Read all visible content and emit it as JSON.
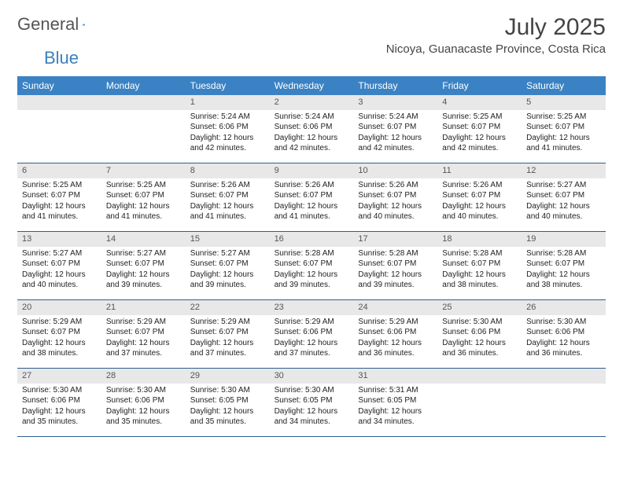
{
  "logo": {
    "part1": "General",
    "part2": "Blue"
  },
  "title": "July 2025",
  "location": "Nicoya, Guanacaste Province, Costa Rica",
  "colors": {
    "header_bg": "#3b82c4",
    "header_text": "#ffffff",
    "daynum_bg": "#e8e8e8",
    "border": "#2f5f8f",
    "logo_gray": "#555555",
    "logo_blue": "#3b7fbf"
  },
  "dow": [
    "Sunday",
    "Monday",
    "Tuesday",
    "Wednesday",
    "Thursday",
    "Friday",
    "Saturday"
  ],
  "weeks": [
    [
      null,
      null,
      {
        "n": "1",
        "sr": "5:24 AM",
        "ss": "6:06 PM",
        "dl": "12 hours and 42 minutes."
      },
      {
        "n": "2",
        "sr": "5:24 AM",
        "ss": "6:06 PM",
        "dl": "12 hours and 42 minutes."
      },
      {
        "n": "3",
        "sr": "5:24 AM",
        "ss": "6:07 PM",
        "dl": "12 hours and 42 minutes."
      },
      {
        "n": "4",
        "sr": "5:25 AM",
        "ss": "6:07 PM",
        "dl": "12 hours and 42 minutes."
      },
      {
        "n": "5",
        "sr": "5:25 AM",
        "ss": "6:07 PM",
        "dl": "12 hours and 41 minutes."
      }
    ],
    [
      {
        "n": "6",
        "sr": "5:25 AM",
        "ss": "6:07 PM",
        "dl": "12 hours and 41 minutes."
      },
      {
        "n": "7",
        "sr": "5:25 AM",
        "ss": "6:07 PM",
        "dl": "12 hours and 41 minutes."
      },
      {
        "n": "8",
        "sr": "5:26 AM",
        "ss": "6:07 PM",
        "dl": "12 hours and 41 minutes."
      },
      {
        "n": "9",
        "sr": "5:26 AM",
        "ss": "6:07 PM",
        "dl": "12 hours and 41 minutes."
      },
      {
        "n": "10",
        "sr": "5:26 AM",
        "ss": "6:07 PM",
        "dl": "12 hours and 40 minutes."
      },
      {
        "n": "11",
        "sr": "5:26 AM",
        "ss": "6:07 PM",
        "dl": "12 hours and 40 minutes."
      },
      {
        "n": "12",
        "sr": "5:27 AM",
        "ss": "6:07 PM",
        "dl": "12 hours and 40 minutes."
      }
    ],
    [
      {
        "n": "13",
        "sr": "5:27 AM",
        "ss": "6:07 PM",
        "dl": "12 hours and 40 minutes."
      },
      {
        "n": "14",
        "sr": "5:27 AM",
        "ss": "6:07 PM",
        "dl": "12 hours and 39 minutes."
      },
      {
        "n": "15",
        "sr": "5:27 AM",
        "ss": "6:07 PM",
        "dl": "12 hours and 39 minutes."
      },
      {
        "n": "16",
        "sr": "5:28 AM",
        "ss": "6:07 PM",
        "dl": "12 hours and 39 minutes."
      },
      {
        "n": "17",
        "sr": "5:28 AM",
        "ss": "6:07 PM",
        "dl": "12 hours and 39 minutes."
      },
      {
        "n": "18",
        "sr": "5:28 AM",
        "ss": "6:07 PM",
        "dl": "12 hours and 38 minutes."
      },
      {
        "n": "19",
        "sr": "5:28 AM",
        "ss": "6:07 PM",
        "dl": "12 hours and 38 minutes."
      }
    ],
    [
      {
        "n": "20",
        "sr": "5:29 AM",
        "ss": "6:07 PM",
        "dl": "12 hours and 38 minutes."
      },
      {
        "n": "21",
        "sr": "5:29 AM",
        "ss": "6:07 PM",
        "dl": "12 hours and 37 minutes."
      },
      {
        "n": "22",
        "sr": "5:29 AM",
        "ss": "6:07 PM",
        "dl": "12 hours and 37 minutes."
      },
      {
        "n": "23",
        "sr": "5:29 AM",
        "ss": "6:06 PM",
        "dl": "12 hours and 37 minutes."
      },
      {
        "n": "24",
        "sr": "5:29 AM",
        "ss": "6:06 PM",
        "dl": "12 hours and 36 minutes."
      },
      {
        "n": "25",
        "sr": "5:30 AM",
        "ss": "6:06 PM",
        "dl": "12 hours and 36 minutes."
      },
      {
        "n": "26",
        "sr": "5:30 AM",
        "ss": "6:06 PM",
        "dl": "12 hours and 36 minutes."
      }
    ],
    [
      {
        "n": "27",
        "sr": "5:30 AM",
        "ss": "6:06 PM",
        "dl": "12 hours and 35 minutes."
      },
      {
        "n": "28",
        "sr": "5:30 AM",
        "ss": "6:06 PM",
        "dl": "12 hours and 35 minutes."
      },
      {
        "n": "29",
        "sr": "5:30 AM",
        "ss": "6:05 PM",
        "dl": "12 hours and 35 minutes."
      },
      {
        "n": "30",
        "sr": "5:30 AM",
        "ss": "6:05 PM",
        "dl": "12 hours and 34 minutes."
      },
      {
        "n": "31",
        "sr": "5:31 AM",
        "ss": "6:05 PM",
        "dl": "12 hours and 34 minutes."
      },
      null,
      null
    ]
  ],
  "labels": {
    "sunrise": "Sunrise:",
    "sunset": "Sunset:",
    "daylight": "Daylight:"
  }
}
